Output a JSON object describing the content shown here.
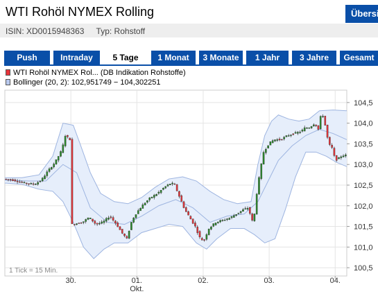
{
  "header": {
    "title": "WTI Rohöl NYMEX Rolling",
    "overview_button": "Übersicht"
  },
  "info": {
    "isin": "ISIN: XD0015948363",
    "typ": "Typ: Rohstoff"
  },
  "tabs": [
    {
      "label": "Push",
      "active": false
    },
    {
      "label": "Intraday",
      "active": false
    },
    {
      "label": "5 Tage",
      "active": true
    },
    {
      "label": "1 Monat",
      "active": false
    },
    {
      "label": "3 Monate",
      "active": false
    },
    {
      "label": "1 Jahr",
      "active": false
    },
    {
      "label": "3 Jahre",
      "active": false
    },
    {
      "label": "Gesamt",
      "active": false
    }
  ],
  "legend": {
    "price": "WTI Rohöl NYMEX Rol... (DB Indikation Rohstoffe)",
    "bollinger": "Bollinger (20, 2): 102,951749 − 104,302251"
  },
  "colors": {
    "tab_blue": "#0a4fa8",
    "band_fill": "#e6eefb",
    "band_stroke": "#9db4e0",
    "up": "#2a8a2a",
    "down": "#e8343a"
  },
  "chart_data": {
    "type": "candlestick",
    "tick_note": "1 Tick = 15 Min.",
    "y_ticks": [
      "104,5",
      "104,0",
      "103,5",
      "103,0",
      "102,5",
      "102,0",
      "101,5",
      "101,0",
      "100,5"
    ],
    "ylim": [
      100.3,
      104.8
    ],
    "x_ticks": [
      {
        "label": "30.",
        "pos": 0.193
      },
      {
        "label": "01.",
        "sublabel": "Okt.",
        "pos": 0.386
      },
      {
        "label": "02.",
        "pos": 0.58
      },
      {
        "label": "03.",
        "pos": 0.773
      },
      {
        "label": "04.",
        "pos": 0.966
      }
    ],
    "price_path": [
      [
        0.0,
        102.65
      ],
      [
        0.03,
        102.62
      ],
      [
        0.06,
        102.55
      ],
      [
        0.09,
        102.52
      ],
      [
        0.11,
        102.62
      ],
      [
        0.13,
        102.85
      ],
      [
        0.15,
        103.05
      ],
      [
        0.17,
        103.35
      ],
      [
        0.18,
        103.7
      ],
      [
        0.195,
        103.6
      ],
      [
        0.2,
        101.55
      ],
      [
        0.23,
        101.6
      ],
      [
        0.25,
        101.72
      ],
      [
        0.27,
        101.55
      ],
      [
        0.29,
        101.6
      ],
      [
        0.31,
        101.75
      ],
      [
        0.33,
        101.55
      ],
      [
        0.345,
        101.35
      ],
      [
        0.36,
        101.2
      ],
      [
        0.375,
        101.65
      ],
      [
        0.39,
        101.85
      ],
      [
        0.41,
        102.05
      ],
      [
        0.43,
        102.2
      ],
      [
        0.45,
        102.3
      ],
      [
        0.47,
        102.45
      ],
      [
        0.49,
        102.55
      ],
      [
        0.5,
        102.5
      ],
      [
        0.515,
        102.2
      ],
      [
        0.53,
        101.9
      ],
      [
        0.545,
        101.7
      ],
      [
        0.56,
        101.5
      ],
      [
        0.575,
        101.2
      ],
      [
        0.585,
        101.15
      ],
      [
        0.6,
        101.45
      ],
      [
        0.62,
        101.6
      ],
      [
        0.64,
        101.65
      ],
      [
        0.66,
        101.7
      ],
      [
        0.68,
        101.8
      ],
      [
        0.7,
        101.9
      ],
      [
        0.715,
        101.95
      ],
      [
        0.73,
        101.55
      ],
      [
        0.74,
        102.3
      ],
      [
        0.75,
        102.85
      ],
      [
        0.76,
        103.3
      ],
      [
        0.775,
        103.5
      ],
      [
        0.79,
        103.6
      ],
      [
        0.81,
        103.6
      ],
      [
        0.83,
        103.7
      ],
      [
        0.85,
        103.75
      ],
      [
        0.87,
        103.8
      ],
      [
        0.88,
        103.88
      ],
      [
        0.895,
        103.9
      ],
      [
        0.91,
        104.0
      ],
      [
        0.92,
        103.85
      ],
      [
        0.93,
        104.3
      ],
      [
        0.94,
        103.95
      ],
      [
        0.95,
        103.5
      ],
      [
        0.96,
        103.4
      ],
      [
        0.97,
        103.1
      ],
      [
        0.98,
        103.15
      ],
      [
        0.99,
        103.22
      ]
    ],
    "band_upper": [
      [
        0.0,
        102.68
      ],
      [
        0.05,
        102.68
      ],
      [
        0.1,
        102.75
      ],
      [
        0.14,
        103.2
      ],
      [
        0.17,
        104.0
      ],
      [
        0.2,
        103.95
      ],
      [
        0.22,
        103.5
      ],
      [
        0.25,
        102.8
      ],
      [
        0.28,
        102.3
      ],
      [
        0.32,
        102.1
      ],
      [
        0.36,
        102.05
      ],
      [
        0.4,
        102.2
      ],
      [
        0.44,
        102.45
      ],
      [
        0.48,
        102.65
      ],
      [
        0.52,
        102.7
      ],
      [
        0.56,
        102.6
      ],
      [
        0.6,
        102.35
      ],
      [
        0.64,
        102.15
      ],
      [
        0.68,
        102.05
      ],
      [
        0.72,
        102.1
      ],
      [
        0.74,
        103.0
      ],
      [
        0.76,
        103.7
      ],
      [
        0.78,
        104.05
      ],
      [
        0.8,
        104.2
      ],
      [
        0.83,
        104.1
      ],
      [
        0.86,
        104.05
      ],
      [
        0.89,
        104.1
      ],
      [
        0.92,
        104.3
      ],
      [
        0.96,
        104.32
      ],
      [
        1.0,
        104.3
      ]
    ],
    "band_lower": [
      [
        0.0,
        102.55
      ],
      [
        0.05,
        102.52
      ],
      [
        0.1,
        102.4
      ],
      [
        0.14,
        102.35
      ],
      [
        0.17,
        102.1
      ],
      [
        0.2,
        101.6
      ],
      [
        0.23,
        101.0
      ],
      [
        0.26,
        100.72
      ],
      [
        0.29,
        100.95
      ],
      [
        0.32,
        101.1
      ],
      [
        0.36,
        101.1
      ],
      [
        0.4,
        101.35
      ],
      [
        0.44,
        101.45
      ],
      [
        0.48,
        101.55
      ],
      [
        0.52,
        101.5
      ],
      [
        0.56,
        101.1
      ],
      [
        0.59,
        100.95
      ],
      [
        0.62,
        101.2
      ],
      [
        0.66,
        101.45
      ],
      [
        0.7,
        101.45
      ],
      [
        0.73,
        101.3
      ],
      [
        0.76,
        101.1
      ],
      [
        0.79,
        101.2
      ],
      [
        0.82,
        101.9
      ],
      [
        0.85,
        102.7
      ],
      [
        0.88,
        103.3
      ],
      [
        0.91,
        103.3
      ],
      [
        0.94,
        103.2
      ],
      [
        0.97,
        103.05
      ],
      [
        1.0,
        102.95
      ]
    ],
    "band_mid": [
      [
        0.0,
        102.62
      ],
      [
        0.07,
        102.6
      ],
      [
        0.12,
        102.6
      ],
      [
        0.17,
        103.0
      ],
      [
        0.21,
        102.8
      ],
      [
        0.25,
        101.95
      ],
      [
        0.3,
        101.6
      ],
      [
        0.35,
        101.55
      ],
      [
        0.4,
        101.75
      ],
      [
        0.45,
        102.0
      ],
      [
        0.5,
        102.15
      ],
      [
        0.55,
        101.95
      ],
      [
        0.6,
        101.6
      ],
      [
        0.65,
        101.75
      ],
      [
        0.7,
        101.8
      ],
      [
        0.74,
        102.1
      ],
      [
        0.77,
        102.6
      ],
      [
        0.8,
        103.1
      ],
      [
        0.84,
        103.45
      ],
      [
        0.88,
        103.7
      ],
      [
        0.92,
        103.85
      ],
      [
        0.96,
        103.75
      ],
      [
        1.0,
        103.6
      ]
    ]
  }
}
